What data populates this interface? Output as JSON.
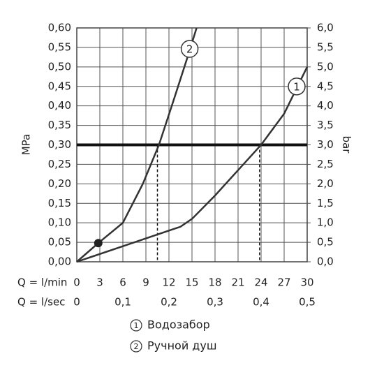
{
  "chart_data": {
    "type": "line",
    "ylabel": "MPa",
    "y2label": "bar",
    "xlabel": "Q = l/min",
    "x2label": "Q = l/sec",
    "xlim": [
      0,
      30
    ],
    "xticks": [
      0,
      3,
      6,
      9,
      12,
      15,
      18,
      21,
      24,
      27,
      30
    ],
    "x2lim": [
      0,
      0.5
    ],
    "x2ticks": [
      0,
      {
        "value": 0.1,
        "label": "0,1"
      },
      {
        "value": 0.2,
        "label": "0,2"
      },
      {
        "value": 0.3,
        "label": "0,3"
      },
      {
        "value": 0.4,
        "label": "0,4"
      },
      {
        "value": 0.5,
        "label": "0,5"
      }
    ],
    "ylim": [
      0,
      0.6
    ],
    "yticks": [
      {
        "value": 0,
        "label": "0,00"
      },
      {
        "value": 0.05,
        "label": "0,05"
      },
      {
        "value": 0.1,
        "label": "0,10"
      },
      {
        "value": 0.15,
        "label": "0,15"
      },
      {
        "value": 0.2,
        "label": "0,20"
      },
      {
        "value": 0.25,
        "label": "0,25"
      },
      {
        "value": 0.3,
        "label": "0,30"
      },
      {
        "value": 0.35,
        "label": "0,35"
      },
      {
        "value": 0.4,
        "label": "0,40"
      },
      {
        "value": 0.45,
        "label": "0,45"
      },
      {
        "value": 0.5,
        "label": "0,50"
      },
      {
        "value": 0.55,
        "label": "0,55"
      },
      {
        "value": 0.6,
        "label": "0,60"
      }
    ],
    "y2lim": [
      0,
      6
    ],
    "y2ticks": [
      {
        "value": 0,
        "label": "0,0"
      },
      {
        "value": 0.5,
        "label": "0,5"
      },
      {
        "value": 1,
        "label": "1,0"
      },
      {
        "value": 1.5,
        "label": "1,5"
      },
      {
        "value": 2,
        "label": "2,0"
      },
      {
        "value": 2.5,
        "label": "2,5"
      },
      {
        "value": 3,
        "label": "3,0"
      },
      {
        "value": 3.5,
        "label": "3,5"
      },
      {
        "value": 4,
        "label": "4,0"
      },
      {
        "value": 4.5,
        "label": "4,5"
      },
      {
        "value": 5,
        "label": "5,0"
      },
      {
        "value": 5.5,
        "label": "5,5"
      },
      {
        "value": 6,
        "label": "6,0"
      }
    ],
    "grid": true,
    "hline": 0.3,
    "vlines": [
      10.5,
      23.8
    ],
    "point": {
      "x": 2.8,
      "y": 0.048
    },
    "series": [
      {
        "name": "Водозабор",
        "label": "1",
        "color": "#333333",
        "x": [
          0,
          6,
          12,
          13.5,
          15,
          18,
          21,
          24,
          27,
          30
        ],
        "values": [
          0,
          0.04,
          0.08,
          0.09,
          0.11,
          0.17,
          0.235,
          0.3,
          0.38,
          0.5
        ]
      },
      {
        "name": "Ручной душ",
        "label": "2",
        "color": "#333333",
        "x": [
          0,
          2.8,
          6,
          8.6,
          10.7,
          12.7,
          14.5,
          15.6
        ],
        "values": [
          0,
          0.048,
          0.1,
          0.2,
          0.3,
          0.42,
          0.53,
          0.6
        ]
      }
    ]
  }
}
